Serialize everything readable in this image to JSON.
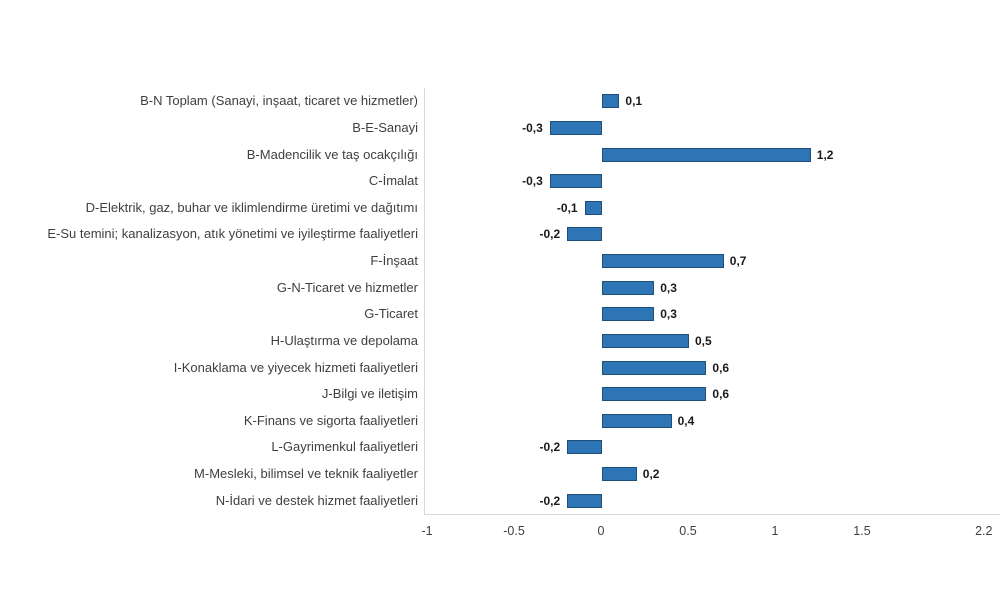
{
  "chart_data": {
    "type": "bar",
    "orientation": "horizontal",
    "categories": [
      "B-N Toplam (Sanayi, inşaat, ticaret ve hizmetler)",
      "B-E-Sanayi",
      "B-Madencilik ve taş ocakçılığı",
      "C-İmalat",
      "D-Elektrik, gaz, buhar ve iklimlendirme üretimi ve dağıtımı",
      "E-Su temini; kanalizasyon, atık yönetimi ve iyileştirme faaliyetleri",
      "F-İnşaat",
      "G-N-Ticaret ve hizmetler",
      "G-Ticaret",
      "H-Ulaştırma ve depolama",
      "I-Konaklama ve yiyecek hizmeti faaliyetleri",
      "J-Bilgi ve iletişim",
      "K-Finans ve sigorta faaliyetleri",
      "L-Gayrimenkul faaliyetleri",
      "M-Mesleki, bilimsel ve teknik faaliyetler",
      "N-İdari ve destek hizmet faaliyetleri"
    ],
    "values": [
      0.1,
      -0.3,
      1.2,
      -0.3,
      -0.1,
      -0.2,
      0.7,
      0.3,
      0.3,
      0.5,
      0.6,
      0.6,
      0.4,
      -0.2,
      0.2,
      -0.2
    ],
    "value_labels": [
      "0,1",
      "-0,3",
      "1,2",
      "-0,3",
      "-0,1",
      "-0,2",
      "0,7",
      "0,3",
      "0,3",
      "0,5",
      "0,6",
      "0,6",
      "0,4",
      "-0,2",
      "0,2",
      "-0,2"
    ],
    "x_ticks": [
      {
        "v": -1,
        "label": "-1"
      },
      {
        "v": -0.5,
        "label": "-0.5"
      },
      {
        "v": 0,
        "label": "0"
      },
      {
        "v": 0.5,
        "label": "0.5"
      },
      {
        "v": 1,
        "label": "1"
      },
      {
        "v": 1.5,
        "label": "1.5"
      },
      {
        "v": 2.2,
        "label": "2.2"
      }
    ],
    "xlim": [
      -1.02,
      2.3
    ],
    "grid": false,
    "legend": false,
    "bar_color": "#2e75b6",
    "bar_border_color": "#1f4e79",
    "axis_line_color": "#d9d9d9"
  }
}
